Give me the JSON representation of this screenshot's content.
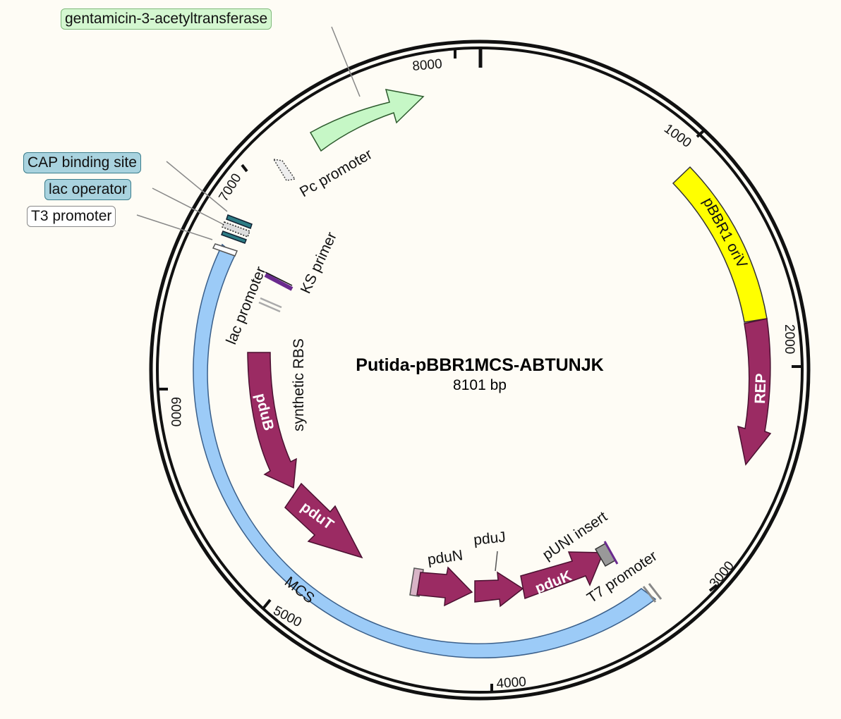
{
  "plasmid": {
    "name": "Putida-pBBR1MCS-ABTUNJK",
    "length": "8101 bp"
  },
  "ticks": [
    "1000",
    "2000",
    "3000",
    "4000",
    "5000",
    "6000",
    "7000",
    "8000"
  ],
  "features": {
    "pbbr1_oriv": "pBBR1 oriV",
    "rep": "REP",
    "pdub": "pduB",
    "pdut": "pduT",
    "pdun": "pduN",
    "pduj": "pduJ",
    "pduk": "pduK",
    "puni_insert": "pUNI insert",
    "t7_promoter": "T7 promoter",
    "mcs": "MCS",
    "lac_promoter": "lac promoter",
    "ks_primer": "KS primer",
    "synthetic_rbs": "synthetic RBS",
    "pc_promoter": "Pc promoter"
  },
  "callouts": {
    "gentamicin": "gentamicin-3-acetyltransferase",
    "cap": "CAP binding site",
    "lac_operator": "lac operator",
    "t3": "T3 promoter"
  },
  "colors": {
    "background": "#fefcf5",
    "gene": "#9b2b63",
    "ori": "#ffff00",
    "mcs": "#9ccbf7",
    "resistance": "#c6f7c6",
    "protein_bind": "#2e7d86",
    "callout_blue": "#a9d3df",
    "callout_green": "#d4f7d0"
  }
}
